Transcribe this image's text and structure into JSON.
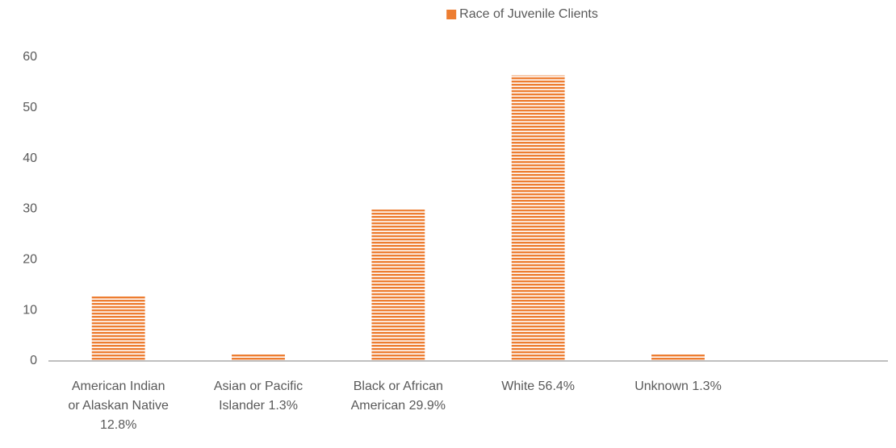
{
  "chart_data": {
    "type": "bar",
    "legend": "Race of Juvenile Clients",
    "categories": [
      "American Indian or Alaskan Native 12.8%",
      "Asian or Pacific Islander 1.3%",
      "Black or African American 29.9%",
      "White 56.4%",
      "Unknown 1.3%",
      null
    ],
    "values": [
      12.8,
      1.3,
      29.9,
      56.4,
      1.3,
      null
    ],
    "color": "#ED7D31",
    "ylim": [
      0,
      60
    ],
    "yticks": [
      0,
      10,
      20,
      30,
      40,
      50,
      60
    ],
    "grid": false,
    "legend_position": "top"
  }
}
